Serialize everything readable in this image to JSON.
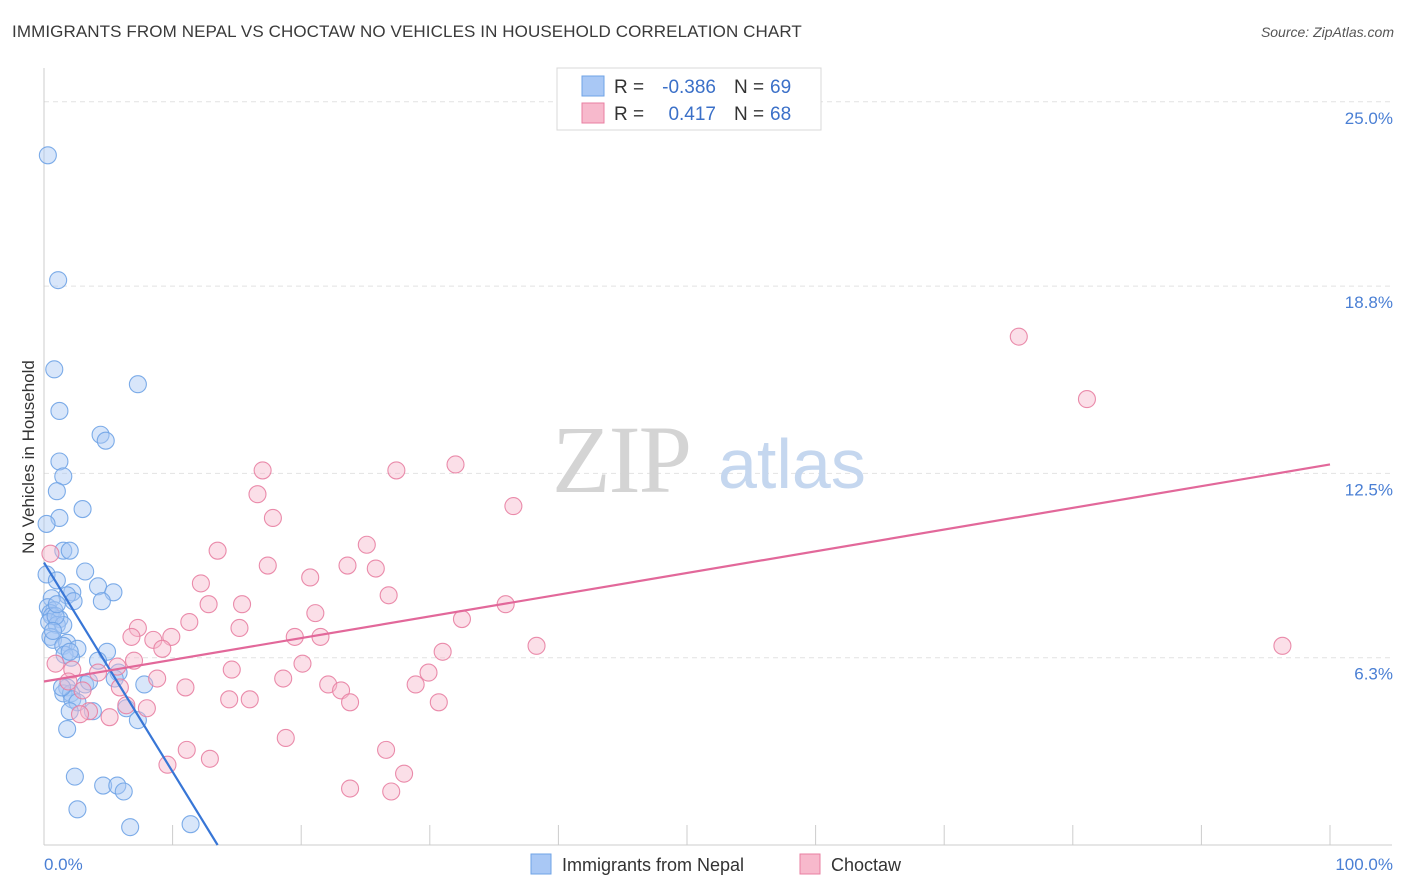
{
  "title": "IMMIGRANTS FROM NEPAL VS CHOCTAW NO VEHICLES IN HOUSEHOLD CORRELATION CHART",
  "source": "Source: ZipAtlas.com",
  "watermark": {
    "zip": "ZIP",
    "atlas": "atlas"
  },
  "legend": {
    "rows": [
      {
        "r_label": "R =",
        "r_value": "-0.386",
        "n_label": "N =",
        "n_value": "69",
        "color": "#a9c8f5"
      },
      {
        "r_label": "R =",
        "r_value": "0.417",
        "n_label": "N =",
        "n_value": "68",
        "color": "#f7b9cc"
      }
    ]
  },
  "bottom_legend": [
    {
      "label": "Immigrants from Nepal",
      "color": "#a9c8f5"
    },
    {
      "label": "Choctaw",
      "color": "#f7b9cc"
    }
  ],
  "chart_data": {
    "type": "scatter",
    "title": "IMMIGRANTS FROM NEPAL VS CHOCTAW NO VEHICLES IN HOUSEHOLD CORRELATION CHART",
    "xlabel": "",
    "ylabel": "No Vehicles in Household",
    "xlim": [
      0,
      100
    ],
    "ylim": [
      0,
      25.8
    ],
    "x_tick_labels": [
      "0.0%",
      "100.0%"
    ],
    "y_ticks": [
      6.3,
      12.5,
      18.8,
      25.0
    ],
    "y_tick_labels": [
      "6.3%",
      "12.5%",
      "18.8%",
      "25.0%"
    ],
    "grid": true,
    "legend_position": "top-center",
    "series": [
      {
        "name": "Immigrants from Nepal",
        "color": "#6fa3e6",
        "fill": "#a9c8f5",
        "trend": {
          "x": [
            0,
            13.5
          ],
          "y": [
            9.5,
            0
          ]
        },
        "points": [
          [
            0.3,
            23.2
          ],
          [
            1.1,
            19.0
          ],
          [
            0.8,
            16.0
          ],
          [
            7.3,
            15.5
          ],
          [
            1.2,
            14.6
          ],
          [
            4.4,
            13.8
          ],
          [
            4.8,
            13.6
          ],
          [
            1.2,
            12.9
          ],
          [
            1.5,
            12.4
          ],
          [
            1.0,
            11.9
          ],
          [
            3.0,
            11.3
          ],
          [
            1.2,
            11.0
          ],
          [
            0.2,
            10.8
          ],
          [
            1.5,
            9.9
          ],
          [
            2.0,
            9.9
          ],
          [
            3.2,
            9.2
          ],
          [
            0.2,
            9.1
          ],
          [
            1.0,
            8.9
          ],
          [
            4.2,
            8.7
          ],
          [
            2.2,
            8.5
          ],
          [
            5.4,
            8.5
          ],
          [
            1.8,
            8.4
          ],
          [
            0.6,
            8.3
          ],
          [
            2.3,
            8.2
          ],
          [
            4.5,
            8.2
          ],
          [
            0.3,
            8.0
          ],
          [
            0.8,
            7.9
          ],
          [
            0.5,
            7.8
          ],
          [
            0.6,
            7.7
          ],
          [
            1.2,
            7.6
          ],
          [
            0.4,
            7.5
          ],
          [
            1.0,
            7.4
          ],
          [
            1.5,
            7.4
          ],
          [
            0.5,
            7.0
          ],
          [
            0.7,
            6.9
          ],
          [
            1.8,
            6.8
          ],
          [
            1.5,
            6.7
          ],
          [
            2.6,
            6.6
          ],
          [
            4.9,
            6.5
          ],
          [
            1.6,
            6.4
          ],
          [
            2.1,
            6.3
          ],
          [
            4.2,
            6.2
          ],
          [
            5.8,
            5.8
          ],
          [
            5.5,
            5.6
          ],
          [
            7.8,
            5.4
          ],
          [
            3.2,
            5.4
          ],
          [
            1.8,
            5.3
          ],
          [
            1.5,
            5.1
          ],
          [
            2.1,
            5.1
          ],
          [
            2.2,
            4.9
          ],
          [
            2.6,
            4.8
          ],
          [
            6.4,
            4.6
          ],
          [
            2.0,
            4.5
          ],
          [
            3.8,
            4.5
          ],
          [
            7.3,
            4.2
          ],
          [
            1.8,
            3.9
          ],
          [
            2.4,
            2.3
          ],
          [
            4.6,
            2.0
          ],
          [
            5.7,
            2.0
          ],
          [
            6.2,
            1.8
          ],
          [
            2.6,
            1.2
          ],
          [
            6.7,
            0.6
          ],
          [
            11.4,
            0.7
          ],
          [
            1.4,
            5.3
          ],
          [
            0.9,
            7.7
          ],
          [
            2.0,
            6.5
          ],
          [
            3.5,
            5.5
          ],
          [
            1.0,
            8.1
          ],
          [
            0.7,
            7.2
          ]
        ]
      },
      {
        "name": "Choctaw",
        "color": "#e87fa2",
        "fill": "#f7b9cc",
        "trend": {
          "x": [
            0,
            100
          ],
          "y": [
            5.5,
            12.8
          ]
        },
        "points": [
          [
            75.8,
            17.1
          ],
          [
            81.1,
            15.0
          ],
          [
            17.0,
            12.6
          ],
          [
            27.4,
            12.6
          ],
          [
            32.0,
            12.8
          ],
          [
            16.6,
            11.8
          ],
          [
            36.5,
            11.4
          ],
          [
            17.8,
            11.0
          ],
          [
            25.1,
            10.1
          ],
          [
            13.5,
            9.9
          ],
          [
            17.4,
            9.4
          ],
          [
            23.6,
            9.4
          ],
          [
            25.8,
            9.3
          ],
          [
            20.7,
            9.0
          ],
          [
            12.2,
            8.8
          ],
          [
            26.8,
            8.4
          ],
          [
            12.8,
            8.1
          ],
          [
            15.4,
            8.1
          ],
          [
            35.9,
            8.1
          ],
          [
            21.1,
            7.8
          ],
          [
            32.5,
            7.6
          ],
          [
            11.3,
            7.5
          ],
          [
            15.2,
            7.3
          ],
          [
            7.3,
            7.3
          ],
          [
            9.9,
            7.0
          ],
          [
            19.5,
            7.0
          ],
          [
            21.5,
            7.0
          ],
          [
            8.5,
            6.9
          ],
          [
            6.8,
            7.0
          ],
          [
            38.3,
            6.7
          ],
          [
            96.3,
            6.7
          ],
          [
            9.2,
            6.6
          ],
          [
            31.0,
            6.5
          ],
          [
            20.1,
            6.1
          ],
          [
            5.7,
            6.0
          ],
          [
            0.9,
            6.1
          ],
          [
            2.2,
            5.9
          ],
          [
            14.6,
            5.9
          ],
          [
            29.9,
            5.8
          ],
          [
            8.8,
            5.6
          ],
          [
            18.6,
            5.6
          ],
          [
            1.9,
            5.5
          ],
          [
            5.9,
            5.3
          ],
          [
            11.0,
            5.3
          ],
          [
            22.1,
            5.4
          ],
          [
            23.1,
            5.2
          ],
          [
            28.9,
            5.4
          ],
          [
            14.4,
            4.9
          ],
          [
            16.0,
            4.9
          ],
          [
            30.7,
            4.8
          ],
          [
            23.8,
            4.8
          ],
          [
            6.4,
            4.7
          ],
          [
            8.0,
            4.6
          ],
          [
            3.5,
            4.5
          ],
          [
            2.8,
            4.4
          ],
          [
            5.1,
            4.3
          ],
          [
            18.8,
            3.6
          ],
          [
            11.1,
            3.2
          ],
          [
            26.6,
            3.2
          ],
          [
            12.9,
            2.9
          ],
          [
            9.6,
            2.7
          ],
          [
            28.0,
            2.4
          ],
          [
            23.8,
            1.9
          ],
          [
            27.0,
            1.8
          ],
          [
            4.2,
            5.8
          ],
          [
            0.5,
            9.8
          ],
          [
            3.0,
            5.2
          ],
          [
            7.0,
            6.2
          ]
        ]
      }
    ]
  }
}
